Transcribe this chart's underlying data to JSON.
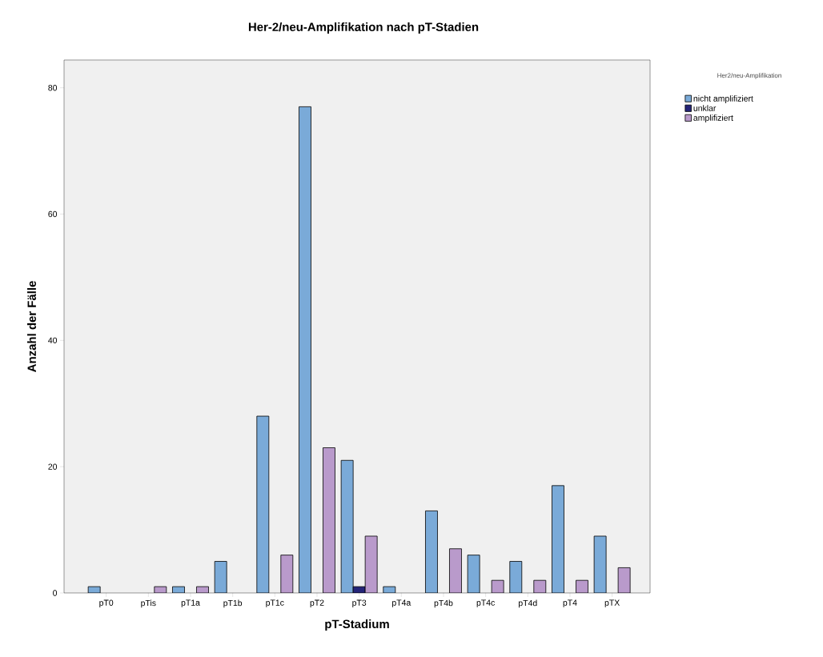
{
  "chart_data": {
    "type": "bar",
    "title": "Her-2/neu-Amplifikation nach pT-Stadien",
    "xlabel": "pT-Stadium",
    "ylabel": "Anzahl der Fälle",
    "legend_title": "Her2/neu-Amplifikation",
    "categories": [
      "pT0",
      "pTis",
      "pT1a",
      "pT1b",
      "pT1c",
      "pT2",
      "pT3",
      "pT4a",
      "pT4b",
      "pT4c",
      "pT4d",
      "pT4",
      "pTX"
    ],
    "series": [
      {
        "name": "nicht amplifiziert",
        "color": "#7aaad8",
        "values": [
          1,
          null,
          1,
          5,
          28,
          77,
          21,
          1,
          13,
          6,
          5,
          17,
          9
        ]
      },
      {
        "name": "unklar",
        "color": "#242478",
        "values": [
          null,
          null,
          null,
          null,
          null,
          null,
          1,
          null,
          null,
          null,
          null,
          null,
          null
        ]
      },
      {
        "name": "amplifiziert",
        "color": "#b99acb",
        "values": [
          null,
          1,
          1,
          null,
          6,
          23,
          9,
          null,
          7,
          2,
          2,
          2,
          4
        ]
      }
    ],
    "ylim": [
      0,
      84.4
    ],
    "yticks": [
      0,
      20,
      40,
      60,
      80
    ],
    "grid": false,
    "legend": "top right"
  }
}
